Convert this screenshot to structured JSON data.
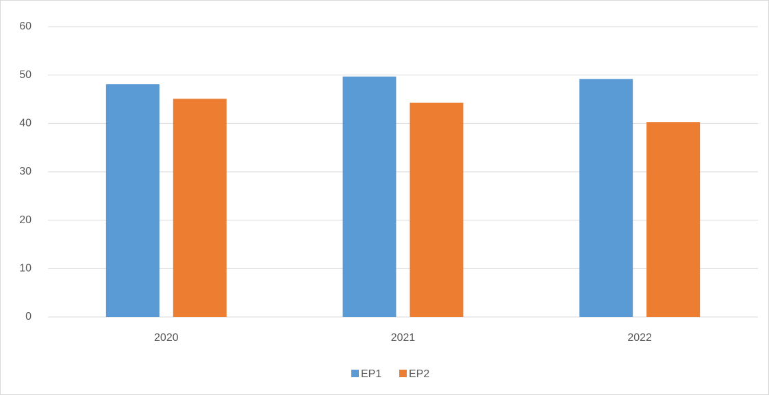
{
  "chart_data": {
    "type": "bar",
    "categories": [
      "2020",
      "2021",
      "2022"
    ],
    "series": [
      {
        "name": "EP1",
        "color": "#5b9bd5",
        "values": [
          48.1,
          49.7,
          49.2
        ]
      },
      {
        "name": "EP2",
        "color": "#ed7d31",
        "values": [
          45.1,
          44.3,
          40.3
        ]
      }
    ],
    "ylim": [
      0,
      60
    ],
    "yticks": [
      0,
      10,
      20,
      30,
      40,
      50,
      60
    ],
    "grid": true,
    "legend": "bottom"
  }
}
